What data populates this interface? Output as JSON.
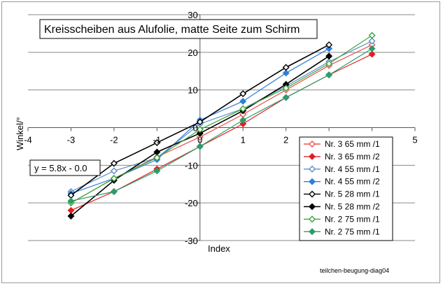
{
  "chart_data": {
    "type": "line",
    "title": "Kreisscheiben aus Alufolie, matte Seite zum Schirm",
    "xlabel": "Index",
    "ylabel": "Winkel/°",
    "xlim": [
      -4,
      5
    ],
    "ylim": [
      -30,
      30
    ],
    "x_ticks": [
      -4,
      -3,
      -2,
      -1,
      0,
      1,
      2,
      3,
      4,
      5
    ],
    "y_ticks": [
      -30,
      -20,
      -10,
      0,
      10,
      20,
      30
    ],
    "grid": "horizontal",
    "legend_position": "bottom-right",
    "annotation": "y = 5.8x - 0.0",
    "footer": "teilchen-beugung-diag04",
    "x": [
      -3,
      -2,
      -1,
      0,
      1,
      2,
      3,
      4
    ],
    "series": [
      {
        "name": "Nr. 3  65 mm /1",
        "color": "#e8554e",
        "marker": "open-diamond",
        "values": [
          -20.0,
          -13.5,
          -7.8,
          -2.5,
          3.5,
          10.0,
          16.5,
          22.0
        ]
      },
      {
        "name": "Nr. 3  65 mm /2",
        "color": "#e02020",
        "marker": "filled-diamond",
        "values": [
          -22.0,
          -17.0,
          -11.0,
          -5.0,
          1.0,
          8.0,
          14.0,
          19.5
        ]
      },
      {
        "name": "Nr. 4  55 mm /1",
        "color": "#5b8fc9",
        "marker": "open-diamond",
        "values": [
          -17.0,
          -11.5,
          -8.0,
          1.0,
          5.0,
          11.0,
          17.5,
          23.0
        ]
      },
      {
        "name": "Nr. 4  55 mm /2",
        "color": "#2f7fd8",
        "marker": "filled-diamond",
        "values": [
          -17.5,
          -13.5,
          -8.5,
          2.0,
          7.0,
          14.5,
          21.0,
          null
        ]
      },
      {
        "name": "Nr. 5 28 mm /1",
        "color": "#000000",
        "marker": "open-diamond",
        "values": [
          -18.0,
          -9.5,
          -4.0,
          1.5,
          9.0,
          16.0,
          22.0,
          null
        ]
      },
      {
        "name": "Nr. 5 28 mm /2",
        "color": "#000000",
        "marker": "filled-diamond",
        "values": [
          -23.5,
          -14.0,
          -6.5,
          -1.5,
          4.5,
          11.5,
          19.0,
          null
        ]
      },
      {
        "name": "Nr. 2 75 mm /1",
        "color": "#3aa43a",
        "marker": "open-diamond",
        "values": [
          -20.0,
          -13.5,
          -8.0,
          -0.5,
          5.0,
          10.5,
          17.0,
          24.5
        ]
      },
      {
        "name": "Nr. 2 75 mm /1",
        "color": "#2a9d6a",
        "marker": "filled-diamond",
        "values": [
          -19.5,
          -17.0,
          -11.5,
          -5.0,
          2.0,
          8.0,
          14.0,
          21.0
        ]
      }
    ]
  }
}
